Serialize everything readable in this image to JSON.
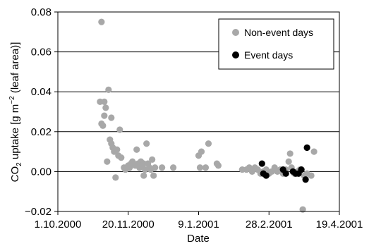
{
  "chart_data": {
    "type": "scatter",
    "title": "",
    "xlabel": "Date",
    "ylabel": "CO₂ uptake [g m⁻² (leaf area)]",
    "ylabel_parts": {
      "pre": "CO",
      "sub": "2",
      "mid": " uptake [g m",
      "sup": "−2",
      "post": " (leaf area)]"
    },
    "xlim": [
      "2000-10-01",
      "2001-04-19"
    ],
    "ylim": [
      -0.02,
      0.08
    ],
    "x_tick_labels": [
      "1.10.2000",
      "20.11.2000",
      "9.1.2001",
      "28.2.2001",
      "19.4.2001"
    ],
    "x_ticks": [
      "2000-10-01",
      "2000-11-20",
      "2001-01-09",
      "2001-02-28",
      "2001-04-19"
    ],
    "y_ticks": [
      -0.02,
      0.0,
      0.02,
      0.04,
      0.06,
      0.08
    ],
    "y_tick_labels": [
      "−0.02",
      "0.00",
      "0.02",
      "0.04",
      "0.06",
      "0.08"
    ],
    "grid": "horizontal",
    "legend_position": "top-right",
    "series": [
      {
        "name": "Non-event days",
        "color": "#a8a8a8",
        "points": [
          {
            "x": "2000-10-31",
            "y": 0.035
          },
          {
            "x": "2000-11-01",
            "y": 0.075
          },
          {
            "x": "2000-11-01",
            "y": 0.024
          },
          {
            "x": "2000-11-02",
            "y": 0.023
          },
          {
            "x": "2000-11-03",
            "y": 0.035
          },
          {
            "x": "2000-11-03",
            "y": 0.028
          },
          {
            "x": "2000-11-04",
            "y": 0.032
          },
          {
            "x": "2000-11-05",
            "y": 0.005
          },
          {
            "x": "2000-11-06",
            "y": 0.041
          },
          {
            "x": "2000-11-07",
            "y": 0.016
          },
          {
            "x": "2000-11-08",
            "y": 0.027
          },
          {
            "x": "2000-11-08",
            "y": 0.014
          },
          {
            "x": "2000-11-09",
            "y": 0.012
          },
          {
            "x": "2000-11-10",
            "y": 0.01
          },
          {
            "x": "2000-11-11",
            "y": -0.003
          },
          {
            "x": "2000-11-12",
            "y": 0.011
          },
          {
            "x": "2000-11-13",
            "y": 0.008
          },
          {
            "x": "2000-11-14",
            "y": 0.021
          },
          {
            "x": "2000-11-15",
            "y": 0.007
          },
          {
            "x": "2000-11-17",
            "y": 0.002
          },
          {
            "x": "2000-11-18",
            "y": 0.001
          },
          {
            "x": "2000-11-19",
            "y": 0.002
          },
          {
            "x": "2000-11-20",
            "y": 0.003
          },
          {
            "x": "2000-11-21",
            "y": 0.002
          },
          {
            "x": "2000-11-22",
            "y": 0.004
          },
          {
            "x": "2000-11-23",
            "y": 0.005
          },
          {
            "x": "2000-11-24",
            "y": 0.004
          },
          {
            "x": "2000-11-25",
            "y": 0.003
          },
          {
            "x": "2000-11-26",
            "y": 0.011
          },
          {
            "x": "2000-11-27",
            "y": 0.004
          },
          {
            "x": "2000-11-28",
            "y": 0.002
          },
          {
            "x": "2000-11-29",
            "y": 0.005
          },
          {
            "x": "2000-11-30",
            "y": 0.003
          },
          {
            "x": "2000-12-01",
            "y": 0.004
          },
          {
            "x": "2000-12-01",
            "y": -0.002
          },
          {
            "x": "2000-12-02",
            "y": 0.001
          },
          {
            "x": "2000-12-03",
            "y": 0.014
          },
          {
            "x": "2000-12-04",
            "y": 0.004
          },
          {
            "x": "2000-12-05",
            "y": 0.002
          },
          {
            "x": "2000-12-06",
            "y": 0.001
          },
          {
            "x": "2000-12-07",
            "y": 0.006
          },
          {
            "x": "2000-12-08",
            "y": -0.002
          },
          {
            "x": "2000-12-09",
            "y": 0.002
          },
          {
            "x": "2000-12-14",
            "y": 0.002
          },
          {
            "x": "2000-12-22",
            "y": 0.002
          },
          {
            "x": "2001-01-09",
            "y": 0.008
          },
          {
            "x": "2001-01-10",
            "y": 0.002
          },
          {
            "x": "2001-01-11",
            "y": 0.01
          },
          {
            "x": "2001-01-14",
            "y": 0.002
          },
          {
            "x": "2001-01-16",
            "y": 0.014
          },
          {
            "x": "2001-01-22",
            "y": 0.004
          },
          {
            "x": "2001-01-23",
            "y": 0.003
          },
          {
            "x": "2001-02-09",
            "y": 0.001
          },
          {
            "x": "2001-02-12",
            "y": 0.001
          },
          {
            "x": "2001-02-14",
            "y": 0.002
          },
          {
            "x": "2001-02-16",
            "y": 0.0
          },
          {
            "x": "2001-02-18",
            "y": 0.002
          },
          {
            "x": "2001-02-20",
            "y": 0.001
          },
          {
            "x": "2001-02-22",
            "y": -0.001
          },
          {
            "x": "2001-02-24",
            "y": 0.0
          },
          {
            "x": "2001-02-26",
            "y": 0.001
          },
          {
            "x": "2001-02-28",
            "y": -0.001
          },
          {
            "x": "2001-03-02",
            "y": 0.0
          },
          {
            "x": "2001-03-04",
            "y": 0.002
          },
          {
            "x": "2001-03-06",
            "y": 0.0
          },
          {
            "x": "2001-03-08",
            "y": 0.001
          },
          {
            "x": "2001-03-10",
            "y": -0.001
          },
          {
            "x": "2001-03-12",
            "y": 0.001
          },
          {
            "x": "2001-03-14",
            "y": 0.005
          },
          {
            "x": "2001-03-15",
            "y": 0.009
          },
          {
            "x": "2001-03-16",
            "y": 0.002
          },
          {
            "x": "2001-03-18",
            "y": -0.001
          },
          {
            "x": "2001-03-20",
            "y": 0.0
          },
          {
            "x": "2001-03-22",
            "y": 0.001
          },
          {
            "x": "2001-03-24",
            "y": -0.019
          },
          {
            "x": "2001-03-25",
            "y": -0.002
          },
          {
            "x": "2001-03-27",
            "y": -0.001
          },
          {
            "x": "2001-03-30",
            "y": -0.002
          },
          {
            "x": "2001-04-01",
            "y": 0.01
          }
        ]
      },
      {
        "name": "Event days",
        "color": "#000000",
        "points": [
          {
            "x": "2001-02-23",
            "y": 0.004
          },
          {
            "x": "2001-02-24",
            "y": -0.001
          },
          {
            "x": "2001-02-26",
            "y": -0.002
          },
          {
            "x": "2001-03-10",
            "y": 0.001
          },
          {
            "x": "2001-03-12",
            "y": -0.001
          },
          {
            "x": "2001-03-17",
            "y": 0.0
          },
          {
            "x": "2001-03-19",
            "y": -0.001
          },
          {
            "x": "2001-03-21",
            "y": -0.001
          },
          {
            "x": "2001-03-23",
            "y": 0.001
          },
          {
            "x": "2001-03-26",
            "y": -0.004
          },
          {
            "x": "2001-03-27",
            "y": 0.012
          }
        ]
      }
    ]
  }
}
